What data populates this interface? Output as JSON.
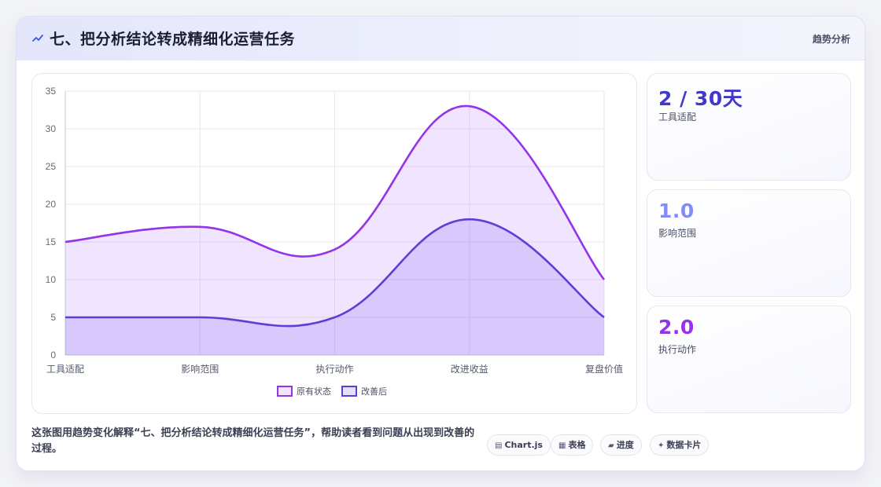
{
  "header": {
    "icon": "trend-line-icon",
    "title": "七、把分析结论转成精细化运营任务",
    "tag": "趋势分析"
  },
  "chart_data": {
    "type": "area",
    "categories": [
      "工具适配",
      "影响范围",
      "执行动作",
      "改进收益",
      "复盘价值"
    ],
    "series": [
      {
        "name": "原有状态",
        "values": [
          15,
          17,
          14,
          33,
          10
        ],
        "color": "#9333ea"
      },
      {
        "name": "改善后",
        "values": [
          5,
          5,
          5,
          18,
          5
        ],
        "color": "#5b3fd6"
      }
    ],
    "ylim": [
      0,
      35
    ],
    "yticks": [
      0,
      5,
      10,
      15,
      20,
      25,
      30,
      35
    ],
    "grid": true,
    "legend": "bottom",
    "xlabel": "",
    "ylabel": ""
  },
  "metrics": [
    {
      "value": "2 / 30天",
      "label": "工具适配",
      "color": "#4338ca"
    },
    {
      "value": "1.0",
      "label": "影响范围",
      "color": "#818cf8"
    },
    {
      "value": "2.0",
      "label": "执行动作",
      "color": "#9333ea"
    }
  ],
  "footer": {
    "description": "这张图用趋势变化解释“七、把分析结论转成精细化运营任务”，帮助读者看到问题从出现到改善的过程。",
    "pills": [
      {
        "icon": "chart-icon",
        "glyph": "▤",
        "label": "Chart.js"
      },
      {
        "icon": "table-icon",
        "glyph": "▦",
        "label": "表格"
      },
      {
        "icon": "progress-icon",
        "glyph": "▰",
        "label": "进度"
      },
      {
        "icon": "sparkle-icon",
        "glyph": "✦",
        "label": "数据卡片"
      }
    ]
  }
}
